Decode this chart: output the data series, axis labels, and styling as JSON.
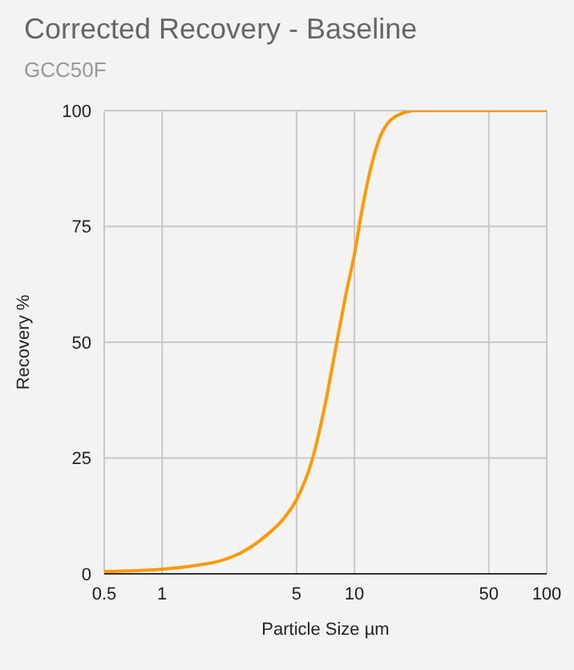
{
  "chart_data": {
    "type": "line",
    "title": "Corrected Recovery - Baseline",
    "subtitle": "GCC50F",
    "xlabel": "Particle Size µm",
    "ylabel": "Recovery %",
    "log": "x",
    "grid": true,
    "marker": "none",
    "line_style": "solid",
    "xlim": [
      0.5,
      100
    ],
    "xticks": [
      0.5,
      1,
      5,
      10,
      50,
      100
    ],
    "ylim": [
      0,
      100
    ],
    "yticks": [
      0,
      25,
      50,
      75,
      100
    ],
    "x": [
      0.5,
      1,
      1.5,
      2,
      2.56,
      3.53,
      4.3,
      5,
      6.07,
      7,
      8.1,
      9,
      10,
      11,
      12.6,
      14,
      17.4,
      21,
      50,
      100
    ],
    "series": [
      {
        "color": "#ff9900",
        "values": [
          0.5,
          1,
          1.8,
          2.8,
          4.5,
          8.5,
          12,
          16,
          25,
          36,
          50,
          60,
          69,
          79,
          90,
          95.5,
          99.3,
          100,
          100,
          100
        ]
      }
    ]
  }
}
